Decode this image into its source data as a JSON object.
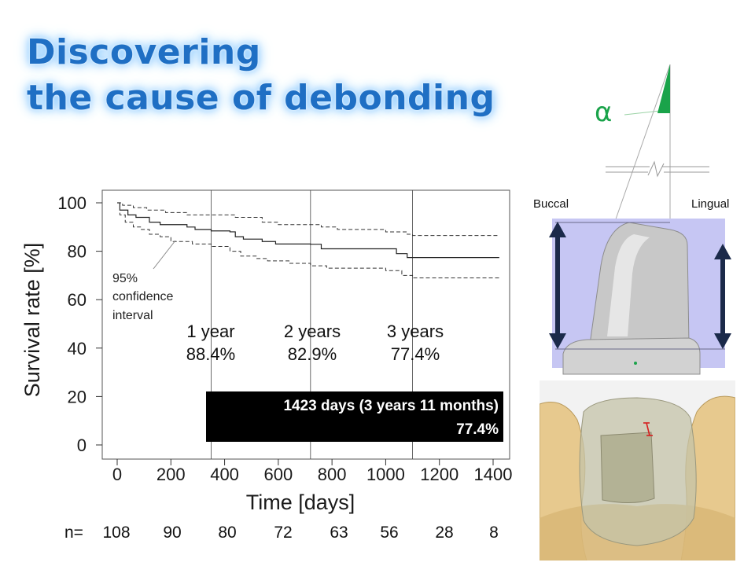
{
  "slide": {
    "title_line1": "Discovering",
    "title_line2": "the cause of debonding"
  },
  "chart_data": {
    "type": "line",
    "xlabel": "Time [days]",
    "ylabel": "Survival rate [%]",
    "xlim": [
      0,
      1423
    ],
    "ylim": [
      0,
      100
    ],
    "xticks": [
      0,
      200,
      400,
      600,
      800,
      1000,
      1200,
      1400
    ],
    "yticks": [
      0,
      20,
      40,
      60,
      80,
      100
    ],
    "grid": false,
    "series": [
      {
        "role": "estimate",
        "x": [
          0,
          10,
          40,
          70,
          120,
          160,
          260,
          290,
          350,
          420,
          440,
          470,
          540,
          590,
          700,
          720,
          760,
          980,
          1040,
          1080,
          1423
        ],
        "y": [
          100,
          97,
          95,
          94,
          92,
          91,
          90,
          89,
          88.4,
          88,
          86,
          85,
          84,
          83,
          83,
          82.9,
          81,
          81,
          79,
          77.4,
          77.4
        ]
      },
      {
        "role": "upper",
        "x": [
          0,
          20,
          60,
          110,
          180,
          260,
          350,
          440,
          540,
          600,
          720,
          760,
          820,
          1000,
          1080,
          1100,
          1423
        ],
        "y": [
          100,
          99,
          98,
          97,
          96,
          95,
          95,
          94,
          92,
          91,
          91,
          90,
          89,
          88,
          87,
          86.5,
          86.5
        ]
      },
      {
        "role": "lower",
        "x": [
          0,
          10,
          30,
          60,
          90,
          120,
          160,
          200,
          280,
          350,
          420,
          460,
          520,
          560,
          640,
          720,
          780,
          1000,
          1060,
          1100,
          1423
        ],
        "y": [
          100,
          95,
          92,
          90,
          89,
          87,
          86,
          84,
          83,
          82,
          80,
          78,
          77,
          76,
          75,
          74,
          73,
          72,
          70,
          69,
          69
        ]
      }
    ],
    "year_markers": [
      {
        "x": 350,
        "label": "1 year",
        "value": "88.4%"
      },
      {
        "x": 720,
        "label": "2 years",
        "value": "82.9%"
      },
      {
        "x": 1100,
        "label": "3 years",
        "value": "77.4%"
      }
    ],
    "ci_annotation": [
      "95%",
      "confidence",
      "interval"
    ],
    "callout": {
      "line1": "1423 days (3 years 11 months)",
      "line2": "77.4%"
    },
    "number_at_risk": {
      "label": "n=",
      "values": [
        "108",
        "90",
        "80",
        "72",
        "63",
        "56",
        "28",
        "8"
      ]
    }
  },
  "tooth_diagram": {
    "alpha": "α",
    "buccal": "Buccal",
    "lingual": "Lingual"
  },
  "colors": {
    "title": "#1f6fc4",
    "alpha_green": "#1aa34a",
    "band": "#c6c6f3",
    "arrow": "#1b2a4a",
    "callout_bg": "#000000"
  }
}
